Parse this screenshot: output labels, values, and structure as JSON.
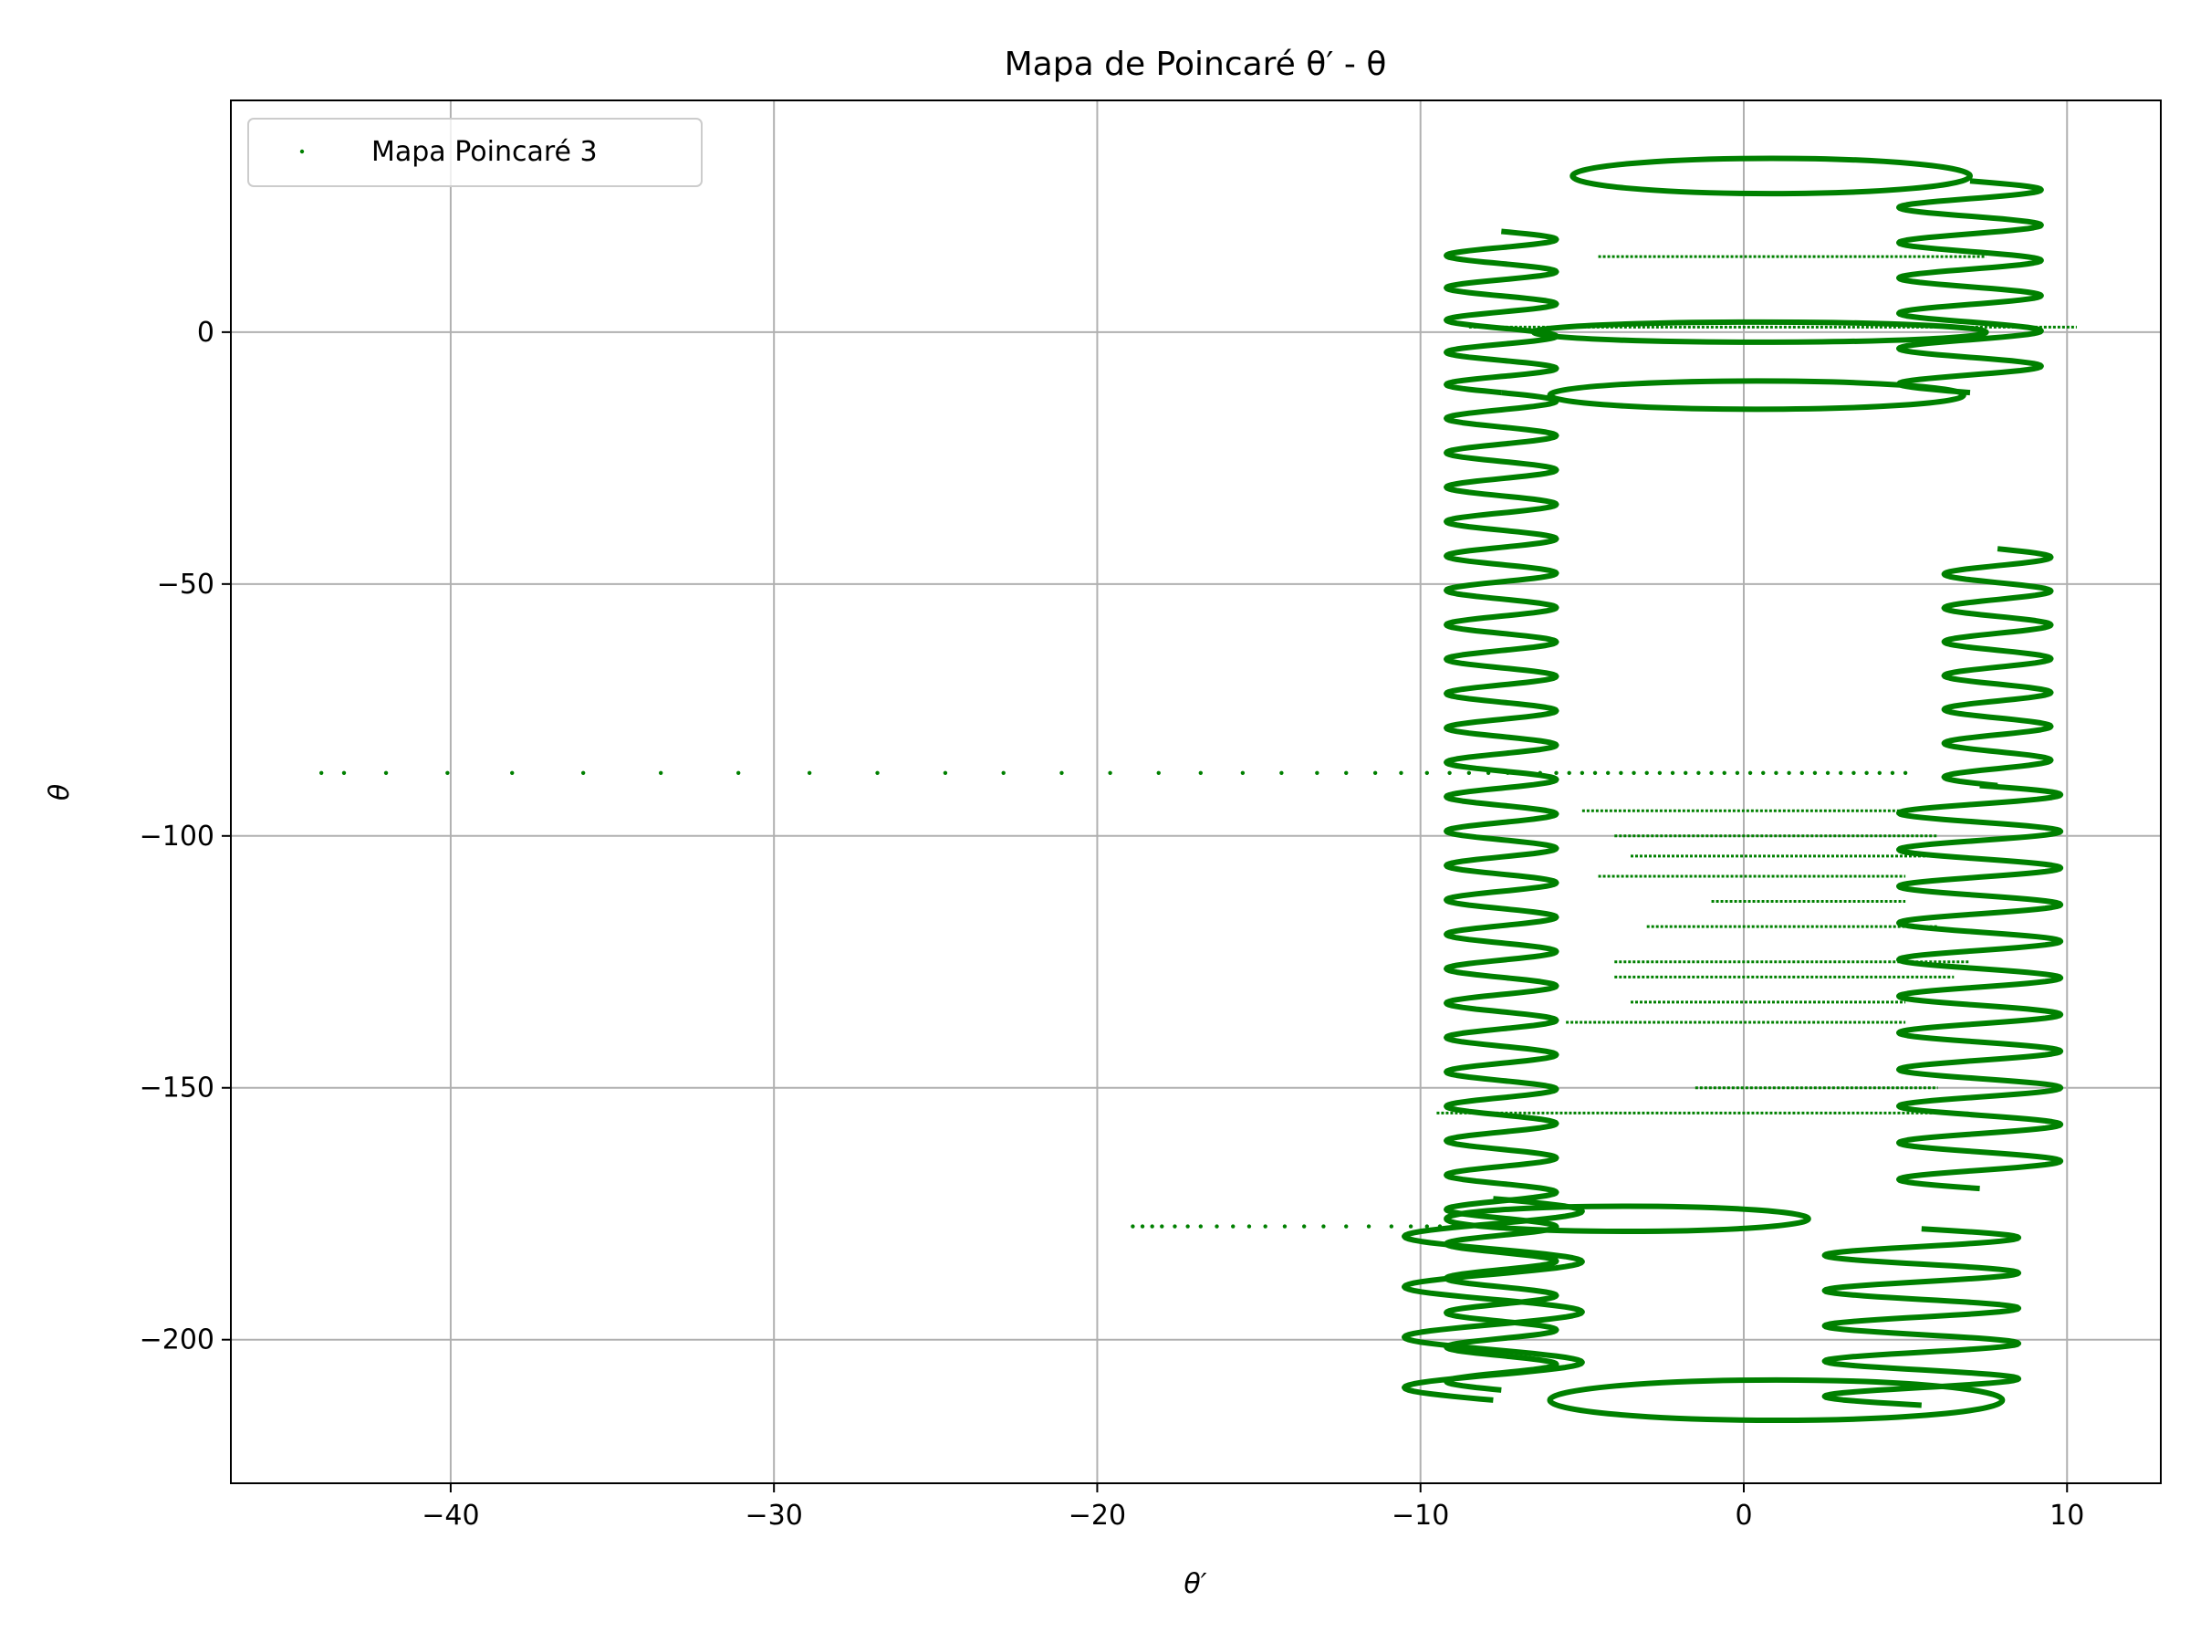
{
  "chart_data": {
    "type": "scatter",
    "title": "Mapa de Poincaré θ′ - θ",
    "xlabel": "θ′",
    "ylabel": "θ",
    "xlim": [
      -46.8,
      12.9
    ],
    "ylim": [
      -228.5,
      46.0
    ],
    "xticks": [
      -40,
      -30,
      -20,
      -10,
      0,
      10
    ],
    "yticks": [
      0,
      -50,
      -100,
      -150,
      -200
    ],
    "xtick_labels": [
      "−40",
      "−30",
      "−20",
      "−10",
      "0",
      "10"
    ],
    "ytick_labels": [
      "0",
      "−50",
      "−100",
      "−150",
      "−200"
    ],
    "grid": true,
    "legend": {
      "placement": "top-left",
      "entries": [
        "Mapa Poincaré 3"
      ]
    },
    "series": [
      {
        "name": "Mapa Poincaré 3",
        "color": "#008000",
        "marker": "point",
        "zigzags": [
          {
            "left": -9.2,
            "right": -5.8,
            "y_top": -12,
            "y_bottom": -210,
            "cycles": 29
          },
          {
            "left": -9.2,
            "right": -5.8,
            "y_top": 20,
            "y_bottom": -12,
            "cycles": 5
          },
          {
            "left": 4.8,
            "right": 9.2,
            "y_top": 30,
            "y_bottom": -12,
            "cycles": 6
          },
          {
            "left": 6.2,
            "right": 9.5,
            "y_top": -43,
            "y_bottom": -90,
            "cycles": 7
          },
          {
            "left": 4.8,
            "right": 9.8,
            "y_top": -90,
            "y_bottom": -170,
            "cycles": 11
          },
          {
            "left": 2.5,
            "right": 8.5,
            "y_top": -178,
            "y_bottom": -213,
            "cycles": 5
          },
          {
            "left": -10.5,
            "right": -5.0,
            "y_top": -172,
            "y_bottom": -212,
            "cycles": 4
          }
        ],
        "rings": [
          {
            "left": -5.3,
            "right": 7.0,
            "y_center": 31,
            "half_height": 3.5
          },
          {
            "left": -6.5,
            "right": 7.5,
            "y_center": 0,
            "half_height": 2.0
          },
          {
            "left": -6.0,
            "right": 6.8,
            "y_center": -12.5,
            "half_height": 2.8
          },
          {
            "left": -9.2,
            "right": 2.0,
            "y_center": -176,
            "half_height": 2.5
          },
          {
            "left": -6.0,
            "right": 8.0,
            "y_center": -212,
            "half_height": 4.0
          }
        ],
        "lines": [
          {
            "x1": -4.5,
            "x2": 7.5,
            "y": 15
          },
          {
            "x1": -8.5,
            "x2": 10.3,
            "y": 1
          },
          {
            "x1": -5.0,
            "x2": 5.0,
            "y": -95
          },
          {
            "x1": -4.0,
            "x2": 6.0,
            "y": -100
          },
          {
            "x1": -3.5,
            "x2": 6.0,
            "y": -104
          },
          {
            "x1": -4.5,
            "x2": 5.0,
            "y": -108
          },
          {
            "x1": -1.0,
            "x2": 5.0,
            "y": -113
          },
          {
            "x1": -3.0,
            "x2": 6.0,
            "y": -118
          },
          {
            "x1": -4.0,
            "x2": 7.0,
            "y": -125
          },
          {
            "x1": -4.0,
            "x2": 6.5,
            "y": -128
          },
          {
            "x1": -3.5,
            "x2": 5.0,
            "y": -133
          },
          {
            "x1": -5.5,
            "x2": 5.0,
            "y": -137
          },
          {
            "x1": -1.5,
            "x2": 6.0,
            "y": -150
          },
          {
            "x1": -9.5,
            "x2": 7.0,
            "y": -155
          }
        ],
        "scatter_rows": [
          {
            "y": -87.5,
            "x": [
              -44.0,
              -43.3,
              -42.0,
              -40.1,
              -38.1,
              -35.9,
              -33.5,
              -31.1,
              -28.9,
              -26.8,
              -24.7,
              -22.9,
              -21.1,
              -19.6,
              -18.1,
              -16.8,
              -15.5,
              -14.3,
              -13.2,
              -12.3,
              -11.4,
              -10.6,
              -9.8,
              -9.1,
              -8.5,
              -7.9,
              -7.3,
              -6.8,
              -6.3,
              -5.8,
              -5.4,
              -5.0,
              -4.6,
              -4.2,
              -3.8,
              -3.4,
              -3.0,
              -2.6,
              -2.2,
              -1.8,
              -1.4,
              -1.0,
              -0.6,
              -0.2,
              0.2,
              0.6,
              1.0,
              1.4,
              1.8,
              2.2,
              2.6,
              3.0,
              3.4,
              3.8,
              4.2,
              4.6,
              5.0
            ]
          },
          {
            "y": -177.5,
            "x": [
              -18.9,
              -18.6,
              -18.3,
              -18.0,
              -17.6,
              -17.2,
              -16.8,
              -16.3,
              -15.8,
              -15.3,
              -14.8,
              -14.2,
              -13.6,
              -13.0,
              -12.3,
              -11.6,
              -10.9,
              -10.3,
              -9.8,
              -9.4,
              -9.0
            ]
          }
        ]
      }
    ]
  }
}
